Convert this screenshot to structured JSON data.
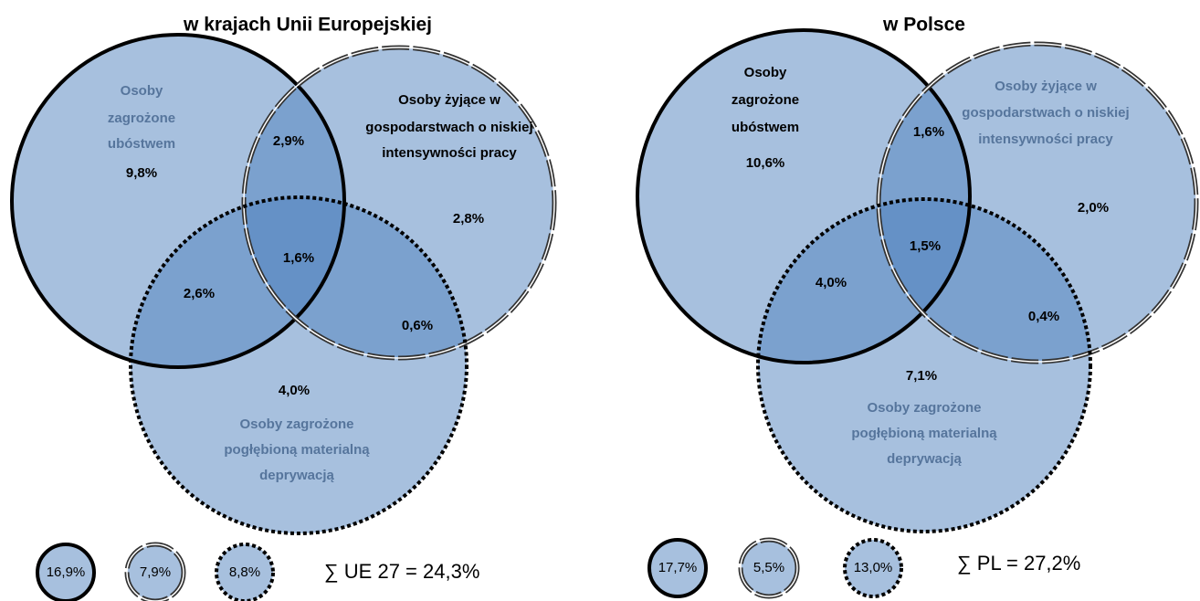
{
  "panels": [
    {
      "title": "w krajach Unii Europejskiej",
      "sets": [
        {
          "label": [
            "Osoby",
            "zagrożone",
            "ubóstwem"
          ]
        },
        {
          "label": [
            "Osoby żyjące w",
            "gospodarstwach o niskiej",
            "intensywności pracy"
          ]
        },
        {
          "label": [
            "Osoby zagrożone",
            "pogłębioną materialną",
            "deprywacją"
          ]
        }
      ],
      "regions": [
        "9,8%",
        "2,8%",
        "4,0%",
        "2,9%",
        "2,6%",
        "0,6%",
        "1,6%"
      ],
      "legend": [
        "16,9%",
        "7,9%",
        "8,8%"
      ],
      "total": "∑ UE 27 = 24,3%"
    },
    {
      "title": "w Polsce",
      "sets": [
        {
          "label": [
            "Osoby",
            "zagrożone",
            "ubóstwem"
          ]
        },
        {
          "label": [
            "Osoby żyjące w",
            "gospodarstwach o niskiej",
            "intensywności pracy"
          ]
        },
        {
          "label": [
            "Osoby zagrożone",
            "pogłębioną materialną",
            "deprywacją"
          ]
        }
      ],
      "regions": [
        "10,6%",
        "2,0%",
        "7,1%",
        "1,6%",
        "4,0%",
        "0,4%",
        "1,5%"
      ],
      "legend": [
        "17,7%",
        "5,5%",
        "13,0%"
      ],
      "total": "∑ PL  = 27,2%"
    }
  ]
}
